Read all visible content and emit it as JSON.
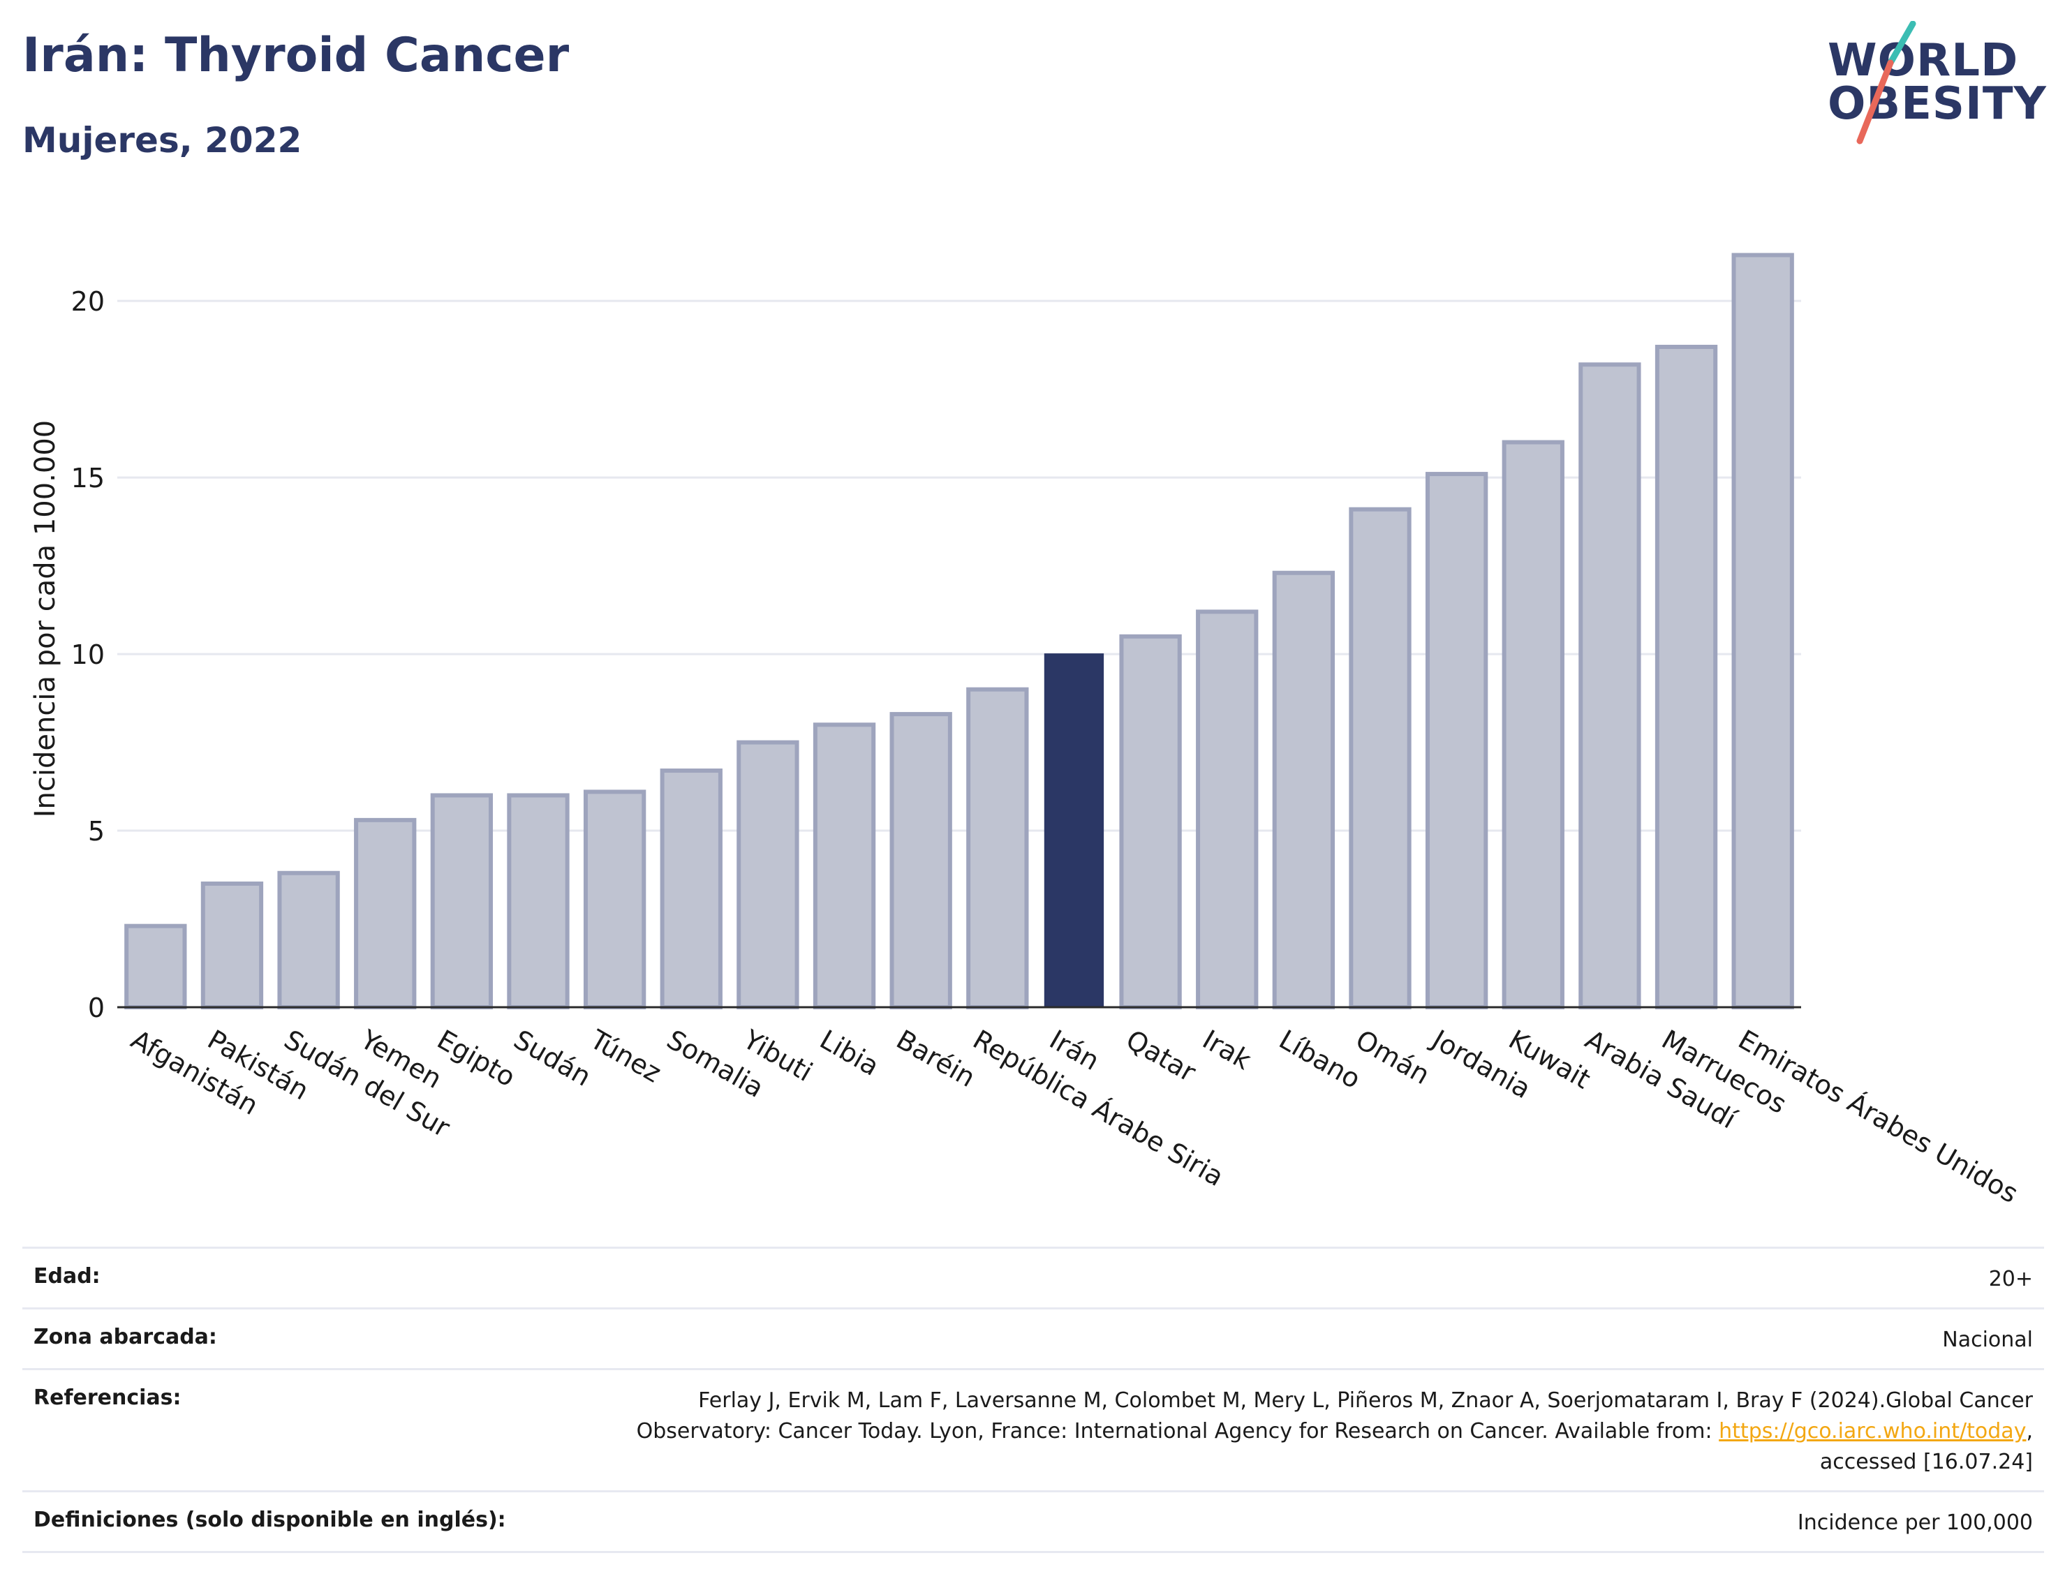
{
  "header": {
    "title": "Irán: Thyroid Cancer",
    "subtitle": "Mujeres, 2022"
  },
  "logo": {
    "line1": "WORLD",
    "line2": "OBESITY",
    "slash_colors": [
      "#3bbdb3",
      "#e8685a"
    ]
  },
  "chart_data": {
    "type": "bar",
    "ylabel": "Incidencia por cada 100.000",
    "ylim": [
      0,
      22
    ],
    "yticks": [
      0,
      5,
      10,
      15,
      20
    ],
    "grid": true,
    "categories": [
      "Afganistán",
      "Pakistán",
      "Sudán del Sur",
      "Yemen",
      "Egipto",
      "Sudán",
      "Túnez",
      "Somalia",
      "Yibuti",
      "Libia",
      "Baréin",
      "República Árabe Siria",
      "Irán",
      "Qatar",
      "Irak",
      "Líbano",
      "Omán",
      "Jordania",
      "Kuwait",
      "Arabia Saudí",
      "Marruecos",
      "Emiratos Árabes Unidos"
    ],
    "values": [
      2.3,
      3.5,
      3.8,
      5.3,
      6.0,
      6.0,
      6.1,
      6.7,
      7.5,
      8.0,
      8.3,
      9.0,
      10.0,
      10.5,
      11.2,
      12.3,
      14.1,
      15.1,
      16.0,
      18.2,
      18.7,
      21.3
    ],
    "highlight": "Irán",
    "colors": {
      "bar": "#bfc3d1",
      "bar_border": "#9ea4bd",
      "highlight": "#2b3765",
      "grid": "#e6e8ef",
      "axis": "#2b2b2b"
    }
  },
  "info": {
    "age_label": "Edad:",
    "age_value": "20+",
    "area_label": "Zona abarcada:",
    "area_value": "Nacional",
    "ref_label": "Referencias:",
    "ref_text_1": "Ferlay J, Ervik M, Lam F, Laversanne M, Colombet M, Mery L, Piñeros M, Znaor A, Soerjomataram I, Bray F (2024).Global Cancer Observatory: Cancer Today. Lyon, France: International Agency for Research on Cancer. Available from: ",
    "ref_link": "https://gco.iarc.who.int/today",
    "ref_text_2": ", accessed [16.07.24]",
    "def_label": "Definiciones (solo disponible en inglés):",
    "def_value": "Incidence per 100,000"
  }
}
